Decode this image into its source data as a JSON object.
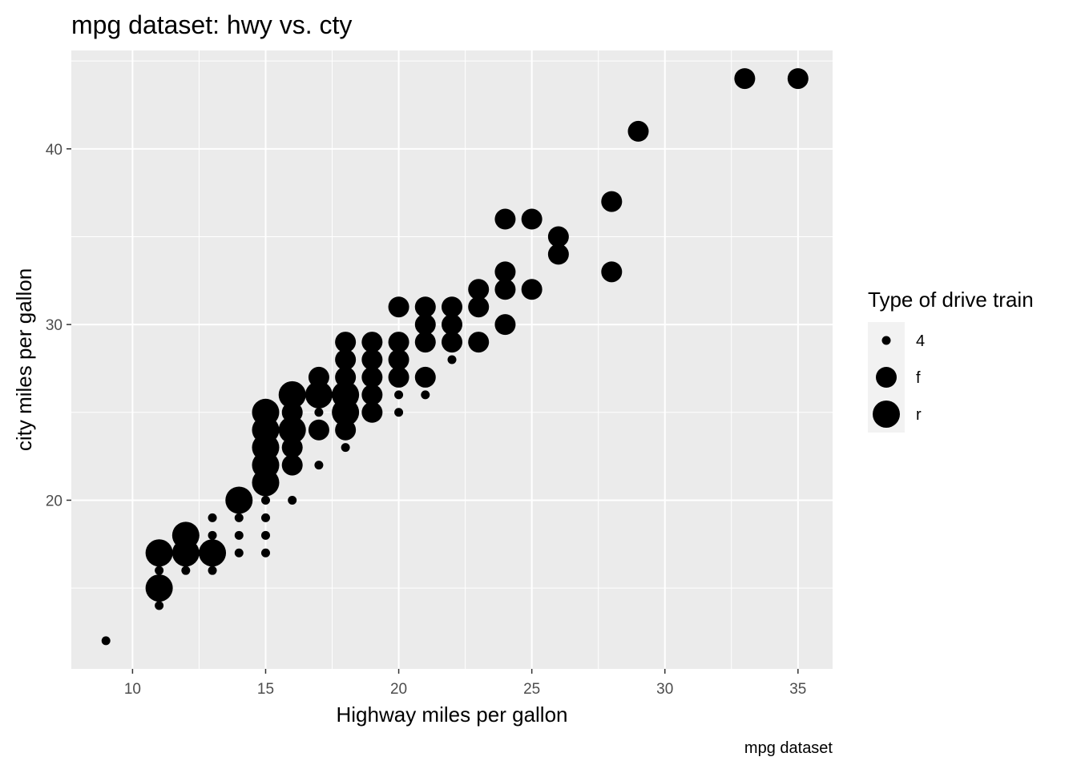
{
  "chart_data": {
    "type": "scatter",
    "title": "mpg dataset: hwy vs. cty",
    "xlabel": "Highway miles per gallon",
    "ylabel": "city miles per gallon",
    "caption": "mpg dataset",
    "xlim": [
      7.7,
      36.3
    ],
    "ylim": [
      10.4,
      45.6
    ],
    "x_ticks": [
      10,
      15,
      20,
      25,
      30,
      35
    ],
    "y_ticks": [
      20,
      30,
      40
    ],
    "grid": true,
    "legend": {
      "title": "Type of drive train",
      "position": "right",
      "entries": [
        {
          "label": "4",
          "size": 1
        },
        {
          "label": "f",
          "size": 2
        },
        {
          "label": "r",
          "size": 3
        }
      ]
    },
    "series": [
      {
        "name": "4",
        "points": [
          [
            9,
            12
          ],
          [
            11,
            14
          ],
          [
            11,
            15
          ],
          [
            11,
            16
          ],
          [
            11,
            17
          ],
          [
            12,
            16
          ],
          [
            12,
            17
          ],
          [
            12,
            18
          ],
          [
            13,
            16
          ],
          [
            13,
            17
          ],
          [
            13,
            18
          ],
          [
            13,
            19
          ],
          [
            14,
            17
          ],
          [
            14,
            18
          ],
          [
            14,
            19
          ],
          [
            14,
            20
          ],
          [
            15,
            17
          ],
          [
            15,
            18
          ],
          [
            15,
            19
          ],
          [
            15,
            20
          ],
          [
            15,
            21
          ],
          [
            15,
            22
          ],
          [
            15,
            23
          ],
          [
            15,
            24
          ],
          [
            15,
            25
          ],
          [
            16,
            20
          ],
          [
            16,
            22
          ],
          [
            16,
            24
          ],
          [
            16,
            26
          ],
          [
            17,
            22
          ],
          [
            17,
            24
          ],
          [
            17,
            25
          ],
          [
            17,
            26
          ],
          [
            17,
            27
          ],
          [
            18,
            23
          ],
          [
            18,
            24
          ],
          [
            18,
            25
          ],
          [
            18,
            26
          ],
          [
            19,
            25
          ],
          [
            19,
            26
          ],
          [
            19,
            27
          ],
          [
            20,
            25
          ],
          [
            20,
            26
          ],
          [
            21,
            26
          ],
          [
            21,
            27
          ],
          [
            22,
            28
          ]
        ]
      },
      {
        "name": "f",
        "points": [
          [
            15,
            21
          ],
          [
            15,
            22
          ],
          [
            15,
            23
          ],
          [
            15,
            24
          ],
          [
            16,
            22
          ],
          [
            16,
            23
          ],
          [
            16,
            24
          ],
          [
            16,
            25
          ],
          [
            17,
            24
          ],
          [
            17,
            26
          ],
          [
            17,
            27
          ],
          [
            18,
            24
          ],
          [
            18,
            25
          ],
          [
            18,
            26
          ],
          [
            18,
            27
          ],
          [
            18,
            28
          ],
          [
            18,
            29
          ],
          [
            19,
            25
          ],
          [
            19,
            26
          ],
          [
            19,
            27
          ],
          [
            19,
            28
          ],
          [
            19,
            29
          ],
          [
            20,
            27
          ],
          [
            20,
            28
          ],
          [
            20,
            29
          ],
          [
            20,
            31
          ],
          [
            21,
            27
          ],
          [
            21,
            29
          ],
          [
            21,
            30
          ],
          [
            21,
            31
          ],
          [
            22,
            29
          ],
          [
            22,
            30
          ],
          [
            22,
            31
          ],
          [
            23,
            29
          ],
          [
            23,
            31
          ],
          [
            23,
            32
          ],
          [
            24,
            30
          ],
          [
            24,
            32
          ],
          [
            24,
            33
          ],
          [
            24,
            36
          ],
          [
            25,
            32
          ],
          [
            25,
            36
          ],
          [
            26,
            34
          ],
          [
            26,
            35
          ],
          [
            28,
            33
          ],
          [
            28,
            37
          ],
          [
            29,
            41
          ],
          [
            33,
            44
          ],
          [
            35,
            44
          ]
        ]
      },
      {
        "name": "r",
        "points": [
          [
            11,
            15
          ],
          [
            11,
            17
          ],
          [
            12,
            17
          ],
          [
            12,
            18
          ],
          [
            13,
            17
          ],
          [
            14,
            20
          ],
          [
            15,
            21
          ],
          [
            15,
            22
          ],
          [
            15,
            23
          ],
          [
            15,
            24
          ],
          [
            15,
            25
          ],
          [
            16,
            24
          ],
          [
            16,
            26
          ],
          [
            17,
            26
          ],
          [
            18,
            25
          ],
          [
            18,
            26
          ]
        ]
      }
    ]
  }
}
